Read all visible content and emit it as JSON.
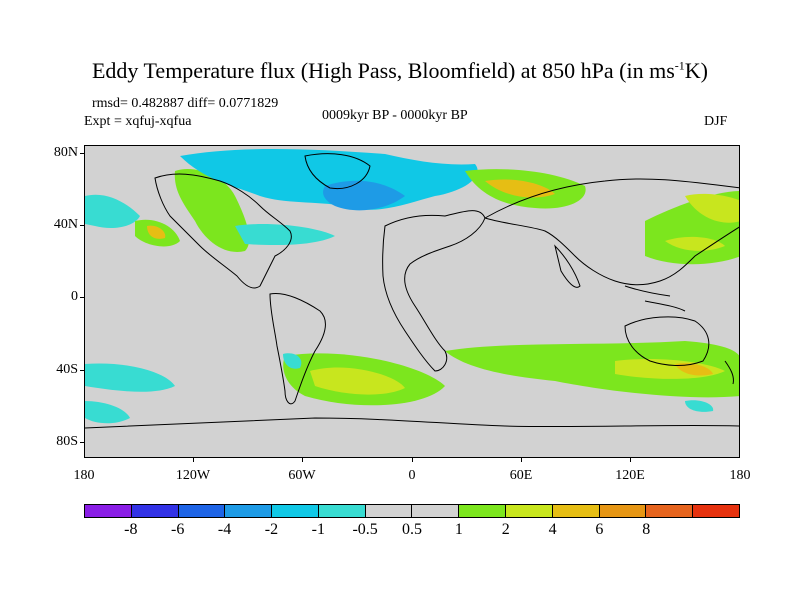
{
  "title": {
    "main": "Eddy Temperature flux (High Pass, Bloomfield) at 850 hPa (in ms",
    "sup": "-1",
    "end": "K)"
  },
  "stats": "rmsd= 0.482887  diff= 0.0771829",
  "expt": "Expt = xqfuj-xqfua",
  "period": "0009kyr BP - 0000kyr BP",
  "season": "DJF",
  "lat_labels": [
    "80N",
    "40N",
    "0",
    "40S",
    "80S"
  ],
  "lon_labels": [
    "180",
    "120W",
    "60W",
    "0",
    "60E",
    "120E",
    "180"
  ],
  "colorbar": {
    "colors": [
      "#8a1ee6",
      "#3232e6",
      "#1e64e6",
      "#1e9be6",
      "#10c8e6",
      "#38dcd2",
      "#d2d2d2",
      "#d2d2d2",
      "#7ce61e",
      "#c8e61e",
      "#e6be14",
      "#e69614",
      "#e6641e",
      "#e6320f"
    ],
    "labels": [
      "-8",
      "-6",
      "-4",
      "-2",
      "-1",
      "-0.5",
      "0.5",
      "1",
      "2",
      "4",
      "6",
      "8"
    ]
  },
  "map": {
    "background": "#d2d2d2",
    "coast_color": "#000000"
  }
}
